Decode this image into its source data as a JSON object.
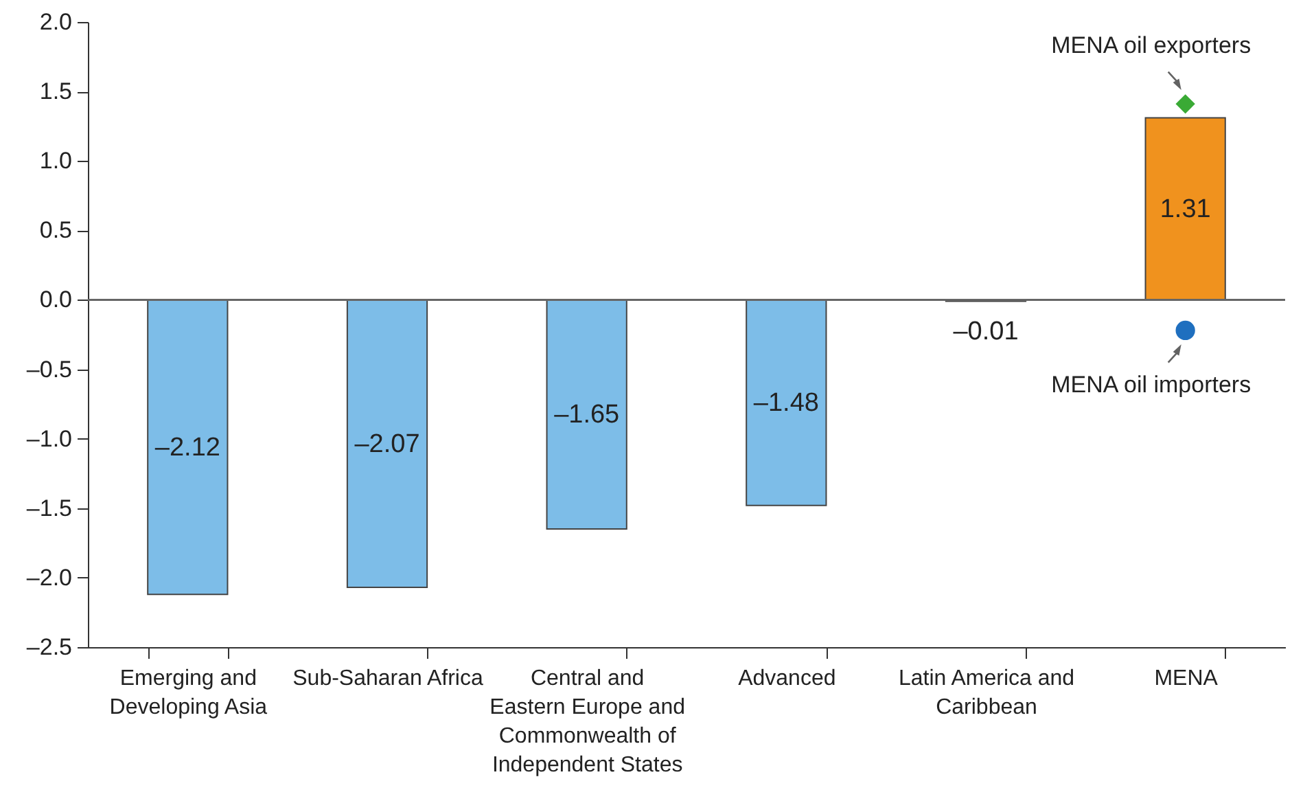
{
  "chart_data": {
    "type": "bar",
    "categories": [
      "Emerging and Developing Asia",
      "Sub-Saharan Africa",
      "Central and Eastern Europe and Commonwealth of Independent States",
      "Advanced",
      "Latin America and Caribbean",
      "MENA"
    ],
    "series": [
      {
        "type": "bar",
        "values": [
          -2.12,
          -2.07,
          -1.65,
          -1.48,
          -0.01,
          1.31
        ],
        "colors": [
          "#7dbde8",
          "#7dbde8",
          "#7dbde8",
          "#7dbde8",
          "#7dbde8",
          "#f0921e"
        ],
        "value_labels": [
          "–2.12",
          "–2.07",
          "–1.65",
          "–1.48",
          "–0.01",
          "1.31"
        ]
      },
      {
        "type": "scatter",
        "name": "MENA oil exporters",
        "color": "#3aaa35",
        "marker": "diamond",
        "x": [
          "MENA"
        ],
        "values": [
          1.41
        ]
      },
      {
        "type": "scatter",
        "name": "MENA oil importers",
        "color": "#1f6fbf",
        "marker": "circle",
        "x": [
          "MENA"
        ],
        "values": [
          -0.22
        ]
      }
    ],
    "ylim": [
      -2.5,
      2.0
    ],
    "yticks": [
      {
        "value": -2.5,
        "label": "–2.5"
      },
      {
        "value": -2,
        "label": "–2.0"
      },
      {
        "value": -1.5,
        "label": "–1.5"
      },
      {
        "value": -1,
        "label": "–1.0"
      },
      {
        "value": -0.5,
        "label": "–0.5"
      },
      {
        "value": 0,
        "label": "0.0"
      },
      {
        "value": 0.5,
        "label": "0.5"
      },
      {
        "value": 1,
        "label": "1.0"
      },
      {
        "value": 1.5,
        "label": "1.5"
      },
      {
        "value": 2,
        "label": "2.0"
      }
    ],
    "ref_lines": [
      {
        "axis": "y",
        "value": 0,
        "color": "#666666"
      }
    ],
    "grid": false
  }
}
